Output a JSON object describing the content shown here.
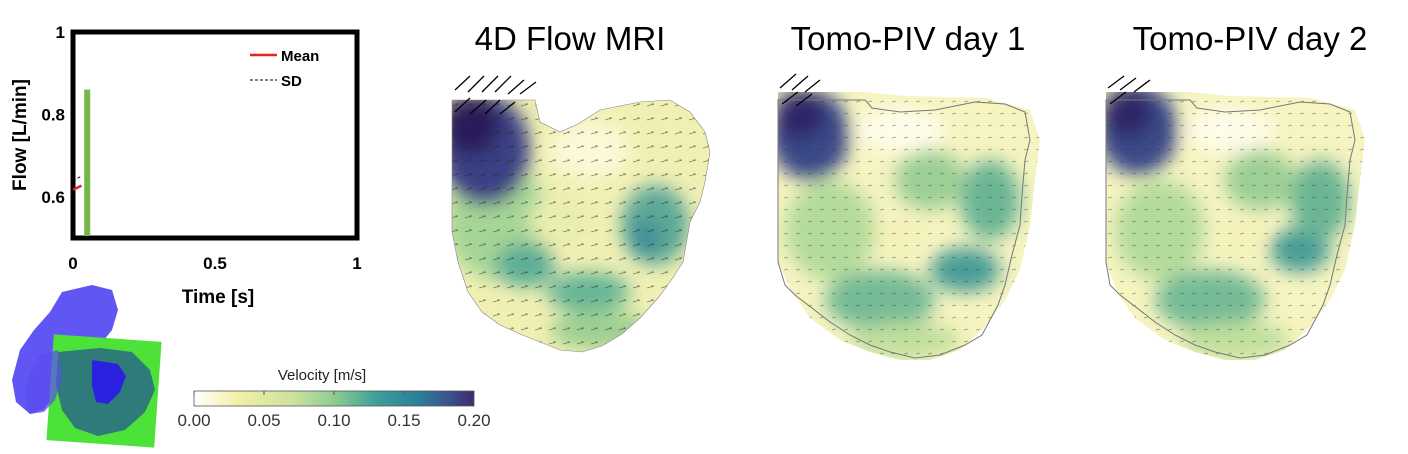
{
  "chart_data": [
    {
      "type": "line",
      "title": "",
      "xlabel": "Time [s]",
      "ylabel": "Flow [L/min]",
      "xlim": [
        0,
        1
      ],
      "ylim": [
        0.5,
        1
      ],
      "xticks": [
        "0",
        "0.5",
        "1"
      ],
      "yticks": [
        "0.6",
        "0.8",
        "1"
      ],
      "ytick_values": [
        0.6,
        0.8,
        1
      ],
      "xtick_values": [
        0,
        0.5,
        1
      ],
      "legend": [
        "Mean",
        "SD"
      ],
      "legend_position": "top-right",
      "series": [
        {
          "name": "Mean",
          "color": "#e8231e",
          "x": [
            0,
            0.03
          ],
          "y": [
            0.617,
            0.627
          ]
        },
        {
          "name": "SD",
          "color": "#000000",
          "x": [
            0,
            0.03
          ],
          "y": [
            0.64,
            0.65
          ]
        }
      ],
      "current_time_marker": {
        "x": 0.05,
        "y_top": 0.86,
        "color": "#74b84a"
      }
    },
    {
      "type": "heatmap",
      "titles": [
        "4D Flow MRI",
        "Tomo-PIV day 1",
        "Tomo-PIV day 2"
      ],
      "colorbar": {
        "label": "Velocity [m/s]",
        "range": [
          0,
          0.2
        ],
        "ticks": [
          "0.00",
          "0.05",
          "0.10",
          "0.15",
          "0.20"
        ],
        "colors": [
          "#ffffff",
          "#f3f1a8",
          "#9bd090",
          "#3e9f9a",
          "#2c7f97",
          "#3a4f8c",
          "#3d2b6e"
        ]
      }
    }
  ]
}
